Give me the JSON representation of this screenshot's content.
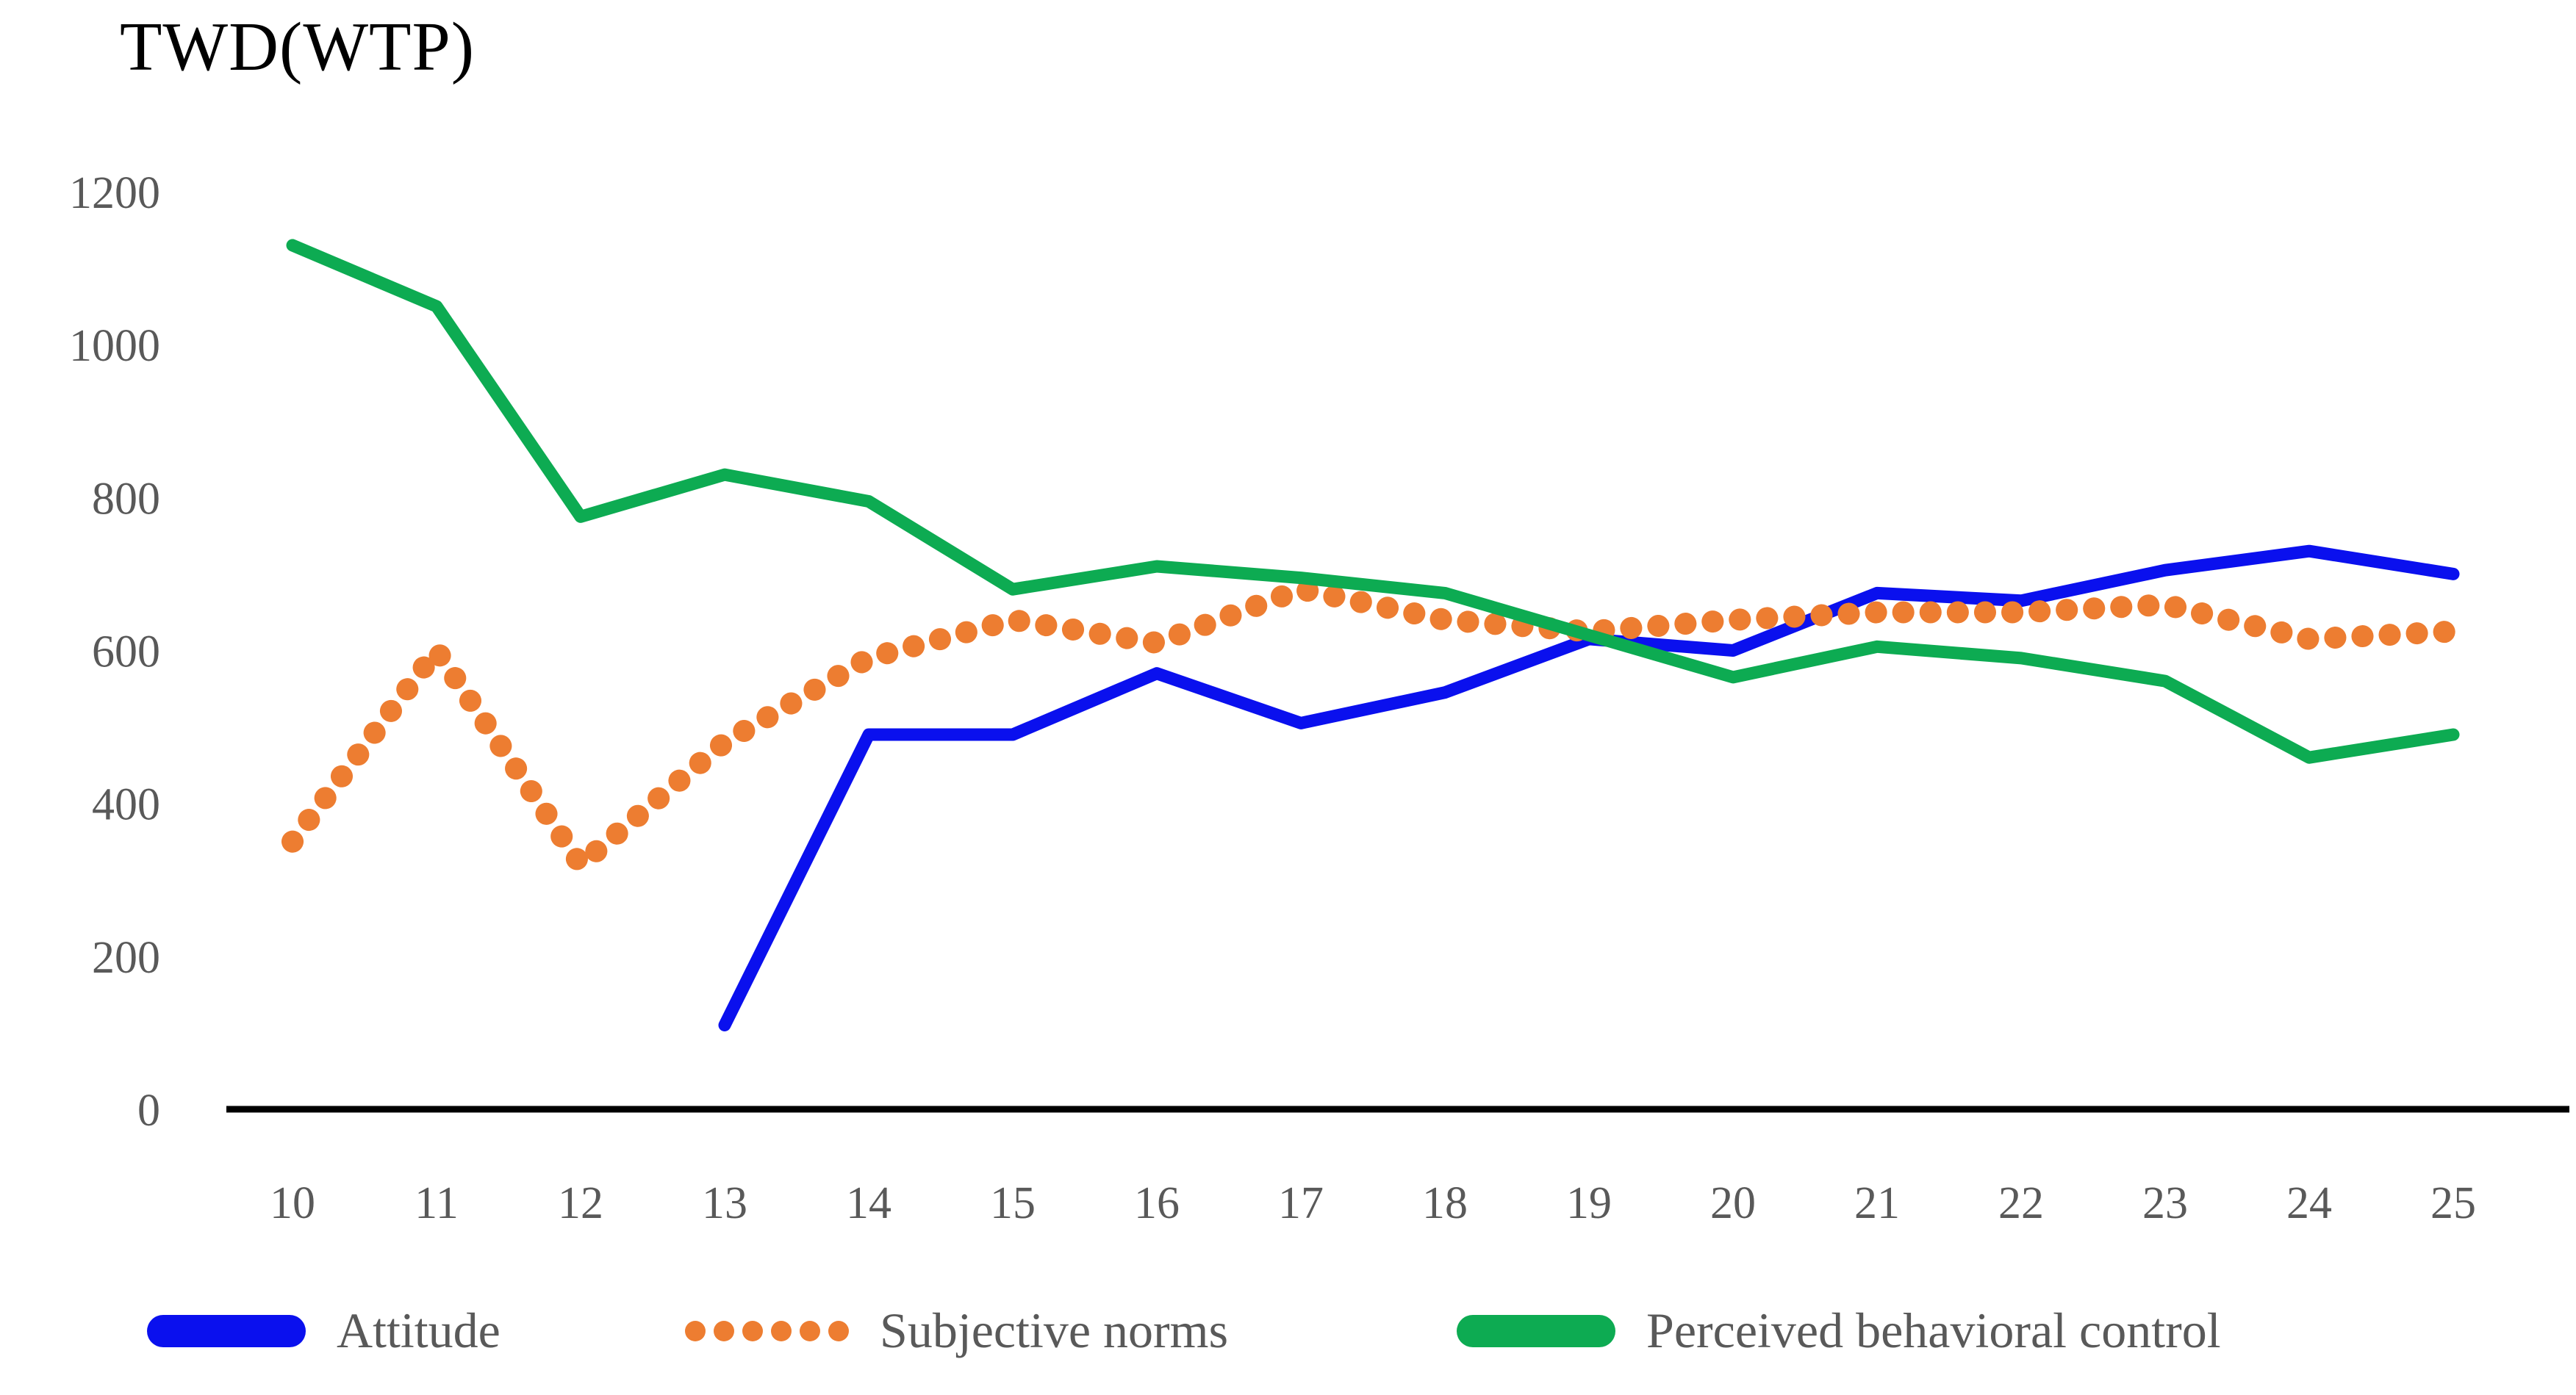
{
  "chart_data": {
    "type": "line",
    "title": "TWD(WTP)",
    "ylabel": "TWD(WTP)",
    "xlabel": "",
    "x": [
      10,
      11,
      12,
      13,
      14,
      15,
      16,
      17,
      18,
      19,
      20,
      21,
      22,
      23,
      24,
      25
    ],
    "series": [
      {
        "name": "Attitude",
        "color": "#0A10EE",
        "style": "solid",
        "values": [
          null,
          null,
          null,
          110,
          490,
          490,
          570,
          505,
          545,
          615,
          600,
          675,
          665,
          705,
          730,
          700
        ]
      },
      {
        "name": "Subjective norms",
        "color": "#ED7D31",
        "style": "dotted",
        "values": [
          350,
          600,
          320,
          480,
          590,
          640,
          610,
          680,
          640,
          625,
          640,
          650,
          650,
          660,
          615,
          625
        ]
      },
      {
        "name": "Perceived behavioral control",
        "color": "#0DAB52",
        "style": "solid",
        "values": [
          1130,
          1050,
          775,
          830,
          795,
          680,
          710,
          695,
          675,
          620,
          565,
          605,
          590,
          560,
          460,
          490
        ]
      }
    ],
    "ylim": [
      0,
      1200
    ],
    "yticks": [
      0,
      200,
      400,
      600,
      800,
      1000,
      1200
    ],
    "grid": false,
    "legend_position": "bottom",
    "axis_color": "#000000",
    "tick_label_color": "#595959"
  }
}
